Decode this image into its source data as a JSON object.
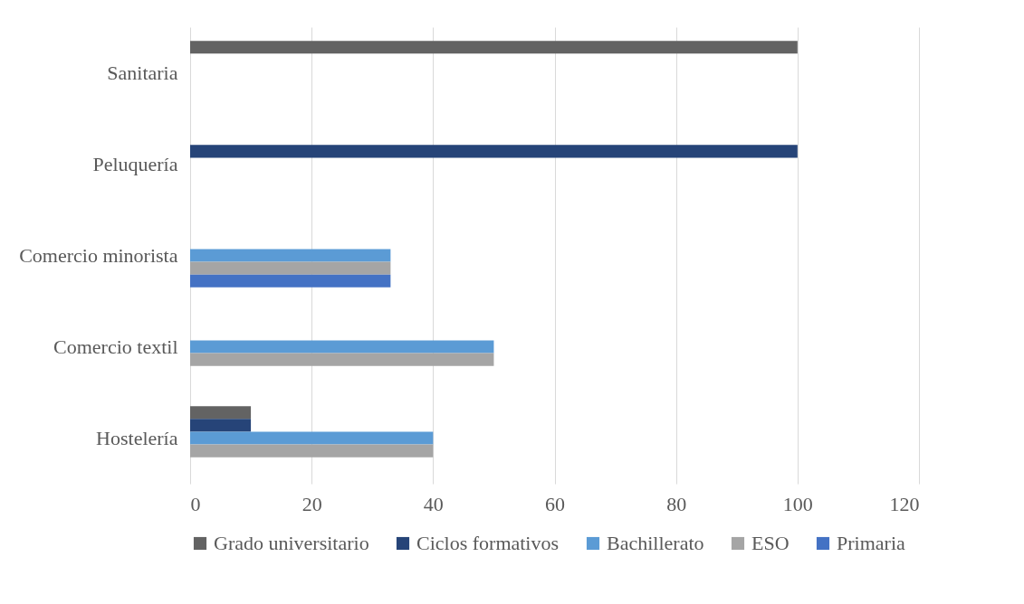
{
  "chart_data": {
    "type": "bar",
    "orientation": "horizontal",
    "categories": [
      "Sanitaria",
      "Peluquería",
      "Comercio minorista",
      "Comercio textil",
      "Hostelería"
    ],
    "series": [
      {
        "name": "Grado universitario",
        "color": "#636363",
        "values": [
          100,
          0,
          0,
          0,
          10
        ]
      },
      {
        "name": "Ciclos formativos",
        "color": "#264478",
        "values": [
          0,
          100,
          0,
          0,
          10
        ]
      },
      {
        "name": "Bachillerato",
        "color": "#5b9bd5",
        "values": [
          0,
          0,
          33,
          50,
          40
        ]
      },
      {
        "name": "ESO",
        "color": "#a5a5a5",
        "values": [
          0,
          0,
          33,
          50,
          40
        ]
      },
      {
        "name": "Primaria",
        "color": "#4472c4",
        "values": [
          0,
          0,
          33,
          0,
          0
        ]
      }
    ],
    "xlim": [
      0,
      120
    ],
    "xticks": [
      0,
      20,
      40,
      60,
      80,
      100,
      120
    ],
    "grid": "x",
    "legend": "bottom"
  }
}
